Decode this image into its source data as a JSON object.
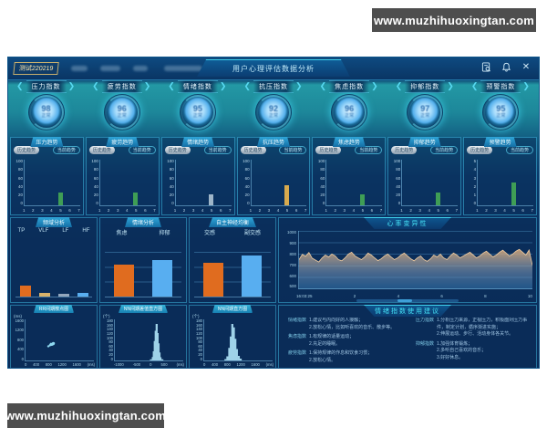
{
  "watermark": {
    "url_text": "www.muzhihuoxingtan.com"
  },
  "titlebar": {
    "badge": "测试220219",
    "title": "用户心理评估数据分析",
    "close_label": "✕"
  },
  "gauges": {
    "items": [
      {
        "label": "压力指数",
        "value": "98",
        "note": "正常"
      },
      {
        "label": "疲劳指数",
        "value": "96",
        "note": "正常"
      },
      {
        "label": "情绪指数",
        "value": "95",
        "note": "正常"
      },
      {
        "label": "抗压指数",
        "value": "92",
        "note": "正常"
      },
      {
        "label": "焦虑指数",
        "value": "96",
        "note": "正常"
      },
      {
        "label": "抑郁指数",
        "value": "97",
        "note": "正常"
      },
      {
        "label": "预警指数",
        "value": "95",
        "note": "正常"
      }
    ]
  },
  "trend": {
    "left_pill": "历史趋势",
    "right_pill": "当前趋势",
    "x_ticks": [
      "1",
      "2",
      "3",
      "4",
      "5",
      "6",
      "7"
    ],
    "panels": [
      {
        "title": "压力趋势",
        "value": 28,
        "ymax": 100,
        "y_ticks": [
          "100",
          "80",
          "60",
          "40",
          "20",
          "0"
        ],
        "color": "#3f9e55"
      },
      {
        "title": "疲劳趋势",
        "value": 28,
        "ymax": 100,
        "y_ticks": [
          "100",
          "80",
          "60",
          "40",
          "20",
          "0"
        ],
        "color": "#3f9e55"
      },
      {
        "title": "情绪趋势",
        "value": 25,
        "ymax": 100,
        "y_ticks": [
          "100",
          "80",
          "60",
          "40",
          "20",
          "0"
        ],
        "color": "#9fb6c9"
      },
      {
        "title": "抗压趋势",
        "value": 45,
        "ymax": 100,
        "y_ticks": [
          "100",
          "80",
          "60",
          "40",
          "20",
          "0"
        ],
        "color": "#d8aa4e"
      },
      {
        "title": "焦虑趋势",
        "value": 25,
        "ymax": 100,
        "y_ticks": [
          "100",
          "80",
          "60",
          "40",
          "20",
          "0"
        ],
        "color": "#3f9e55"
      },
      {
        "title": "抑郁趋势",
        "value": 28,
        "ymax": 100,
        "y_ticks": [
          "100",
          "80",
          "60",
          "40",
          "20",
          "0"
        ],
        "color": "#3f9e55"
      },
      {
        "title": "预警趋势",
        "value": 2.5,
        "ymax": 5,
        "y_ticks": [
          "5",
          "4",
          "3",
          "2",
          "1",
          "0"
        ],
        "color": "#3f9e55"
      }
    ]
  },
  "chart_data": [
    {
      "type": "bar",
      "title": "频域分析",
      "categories": [
        "TP",
        "VLF",
        "LF",
        "HF"
      ],
      "values": [
        18,
        6,
        5,
        6
      ],
      "colors": [
        "#e06c1f",
        "#d9b36a",
        "#93a7bd",
        "#58aef0"
      ],
      "ylim": [
        0,
        100
      ],
      "grid": false
    },
    {
      "type": "bar",
      "title": "情绪分析",
      "categories": [
        "焦虑",
        "抑郁"
      ],
      "values": [
        55,
        62
      ],
      "colors": [
        "#e06c1f",
        "#58aef0"
      ],
      "ylim": [
        0,
        100
      ],
      "grid": true
    },
    {
      "type": "bar",
      "title": "自主神经均衡",
      "categories": [
        "交感",
        "副交感"
      ],
      "values": [
        58,
        70
      ],
      "colors": [
        "#e06c1f",
        "#58aef0"
      ],
      "ylim": [
        0,
        100
      ],
      "grid": true
    },
    {
      "type": "scatter",
      "title": "RR间期散点图",
      "y_unit": "(ms)",
      "x_unit": "(ms)",
      "x_ticks": [
        "0",
        "400",
        "800",
        "1200",
        "1600"
      ],
      "y_ticks": [
        "1600",
        "1200",
        "800",
        "400",
        "0"
      ],
      "xlim": [
        0,
        1800
      ],
      "ylim": [
        0,
        1800
      ],
      "points": [
        [
          600,
          620
        ],
        [
          640,
          660
        ],
        [
          660,
          700
        ],
        [
          680,
          680
        ],
        [
          700,
          720
        ],
        [
          715,
          735
        ],
        [
          690,
          710
        ],
        [
          720,
          745
        ],
        [
          735,
          715
        ],
        [
          705,
          690
        ],
        [
          745,
          755
        ],
        [
          670,
          730
        ],
        [
          655,
          685
        ],
        [
          730,
          765
        ]
      ]
    },
    {
      "type": "bar",
      "title": "NN间期差值直方图",
      "y_unit": "(个)",
      "x_unit": "(ms)",
      "x_ticks": [
        "-1000",
        "-500",
        "0",
        "500"
      ],
      "y_ticks": [
        "180",
        "160",
        "140",
        "120",
        "100",
        "80",
        "60",
        "40",
        "20",
        "0"
      ],
      "xlim": [
        -1100,
        700
      ],
      "ylim": [
        0,
        180
      ],
      "bins": [
        [
          -150,
          5
        ],
        [
          -100,
          15
        ],
        [
          -75,
          40
        ],
        [
          -50,
          85
        ],
        [
          -25,
          130
        ],
        [
          0,
          160
        ],
        [
          25,
          120
        ],
        [
          50,
          75
        ],
        [
          75,
          35
        ],
        [
          100,
          14
        ],
        [
          150,
          5
        ]
      ]
    },
    {
      "type": "bar",
      "title": "NN间期直方图",
      "y_unit": "(个)",
      "x_unit": "(ms)",
      "x_ticks": [
        "0",
        "400",
        "800",
        "1200",
        "1600"
      ],
      "y_ticks": [
        "180",
        "160",
        "140",
        "120",
        "100",
        "80",
        "60",
        "40",
        "20",
        "0"
      ],
      "xlim": [
        0,
        1800
      ],
      "ylim": [
        0,
        180
      ],
      "bins": [
        [
          560,
          6
        ],
        [
          610,
          18
        ],
        [
          660,
          55
        ],
        [
          700,
          105
        ],
        [
          740,
          160
        ],
        [
          780,
          145
        ],
        [
          820,
          95
        ],
        [
          860,
          50
        ],
        [
          910,
          20
        ],
        [
          960,
          8
        ]
      ]
    },
    {
      "type": "area",
      "title": "心率变异性",
      "x_ticks": [
        "16:03:25",
        "2",
        "4",
        "6",
        "8",
        "10"
      ],
      "y_ticks": [
        "1000",
        "900",
        "800",
        "700",
        "600",
        "500"
      ],
      "ylim": [
        400,
        1000
      ],
      "values": [
        700,
        755,
        735,
        775,
        715,
        695,
        675,
        715,
        748,
        728,
        758,
        738,
        700,
        688,
        718,
        758,
        778,
        738,
        718,
        700,
        728,
        768,
        748,
        718,
        690,
        708,
        738,
        758,
        728,
        700,
        718,
        748,
        768,
        738,
        708,
        688,
        718,
        738,
        700,
        682,
        708,
        748,
        728,
        758,
        718,
        700,
        738,
        768,
        748,
        718,
        738,
        758,
        778,
        748,
        718,
        738,
        768,
        788,
        758,
        728,
        748,
        778,
        798,
        768,
        738,
        758,
        788,
        808,
        778,
        748,
        800,
        640
      ]
    }
  ],
  "advice": {
    "title": "情绪指数使用建议",
    "left": [
      {
        "label": "情绪指数",
        "text": "1.建议与内向好的人接触；\n2.放松心情，比如听喜欢的音乐、散步等。"
      },
      {
        "label": "焦虑指数",
        "text": "1.有规律的适量运动；\n2.充足的睡眠。"
      },
      {
        "label": "疲劳指数",
        "text": "1.保持规律的作息和饮食习惯；\n2.放松心情。"
      }
    ],
    "right": [
      {
        "label": "压力指数",
        "text": "1.分析压力来源，正视压力，积极面对压力事件，制定计划，循序渐进实施；\n2.伸展运动、步行、活动身体各关节。"
      },
      {
        "label": "抑郁指数",
        "text": "1.加强体育锻炼；\n2.多听自己喜欢的音乐；\n3.好好休息。"
      }
    ]
  }
}
